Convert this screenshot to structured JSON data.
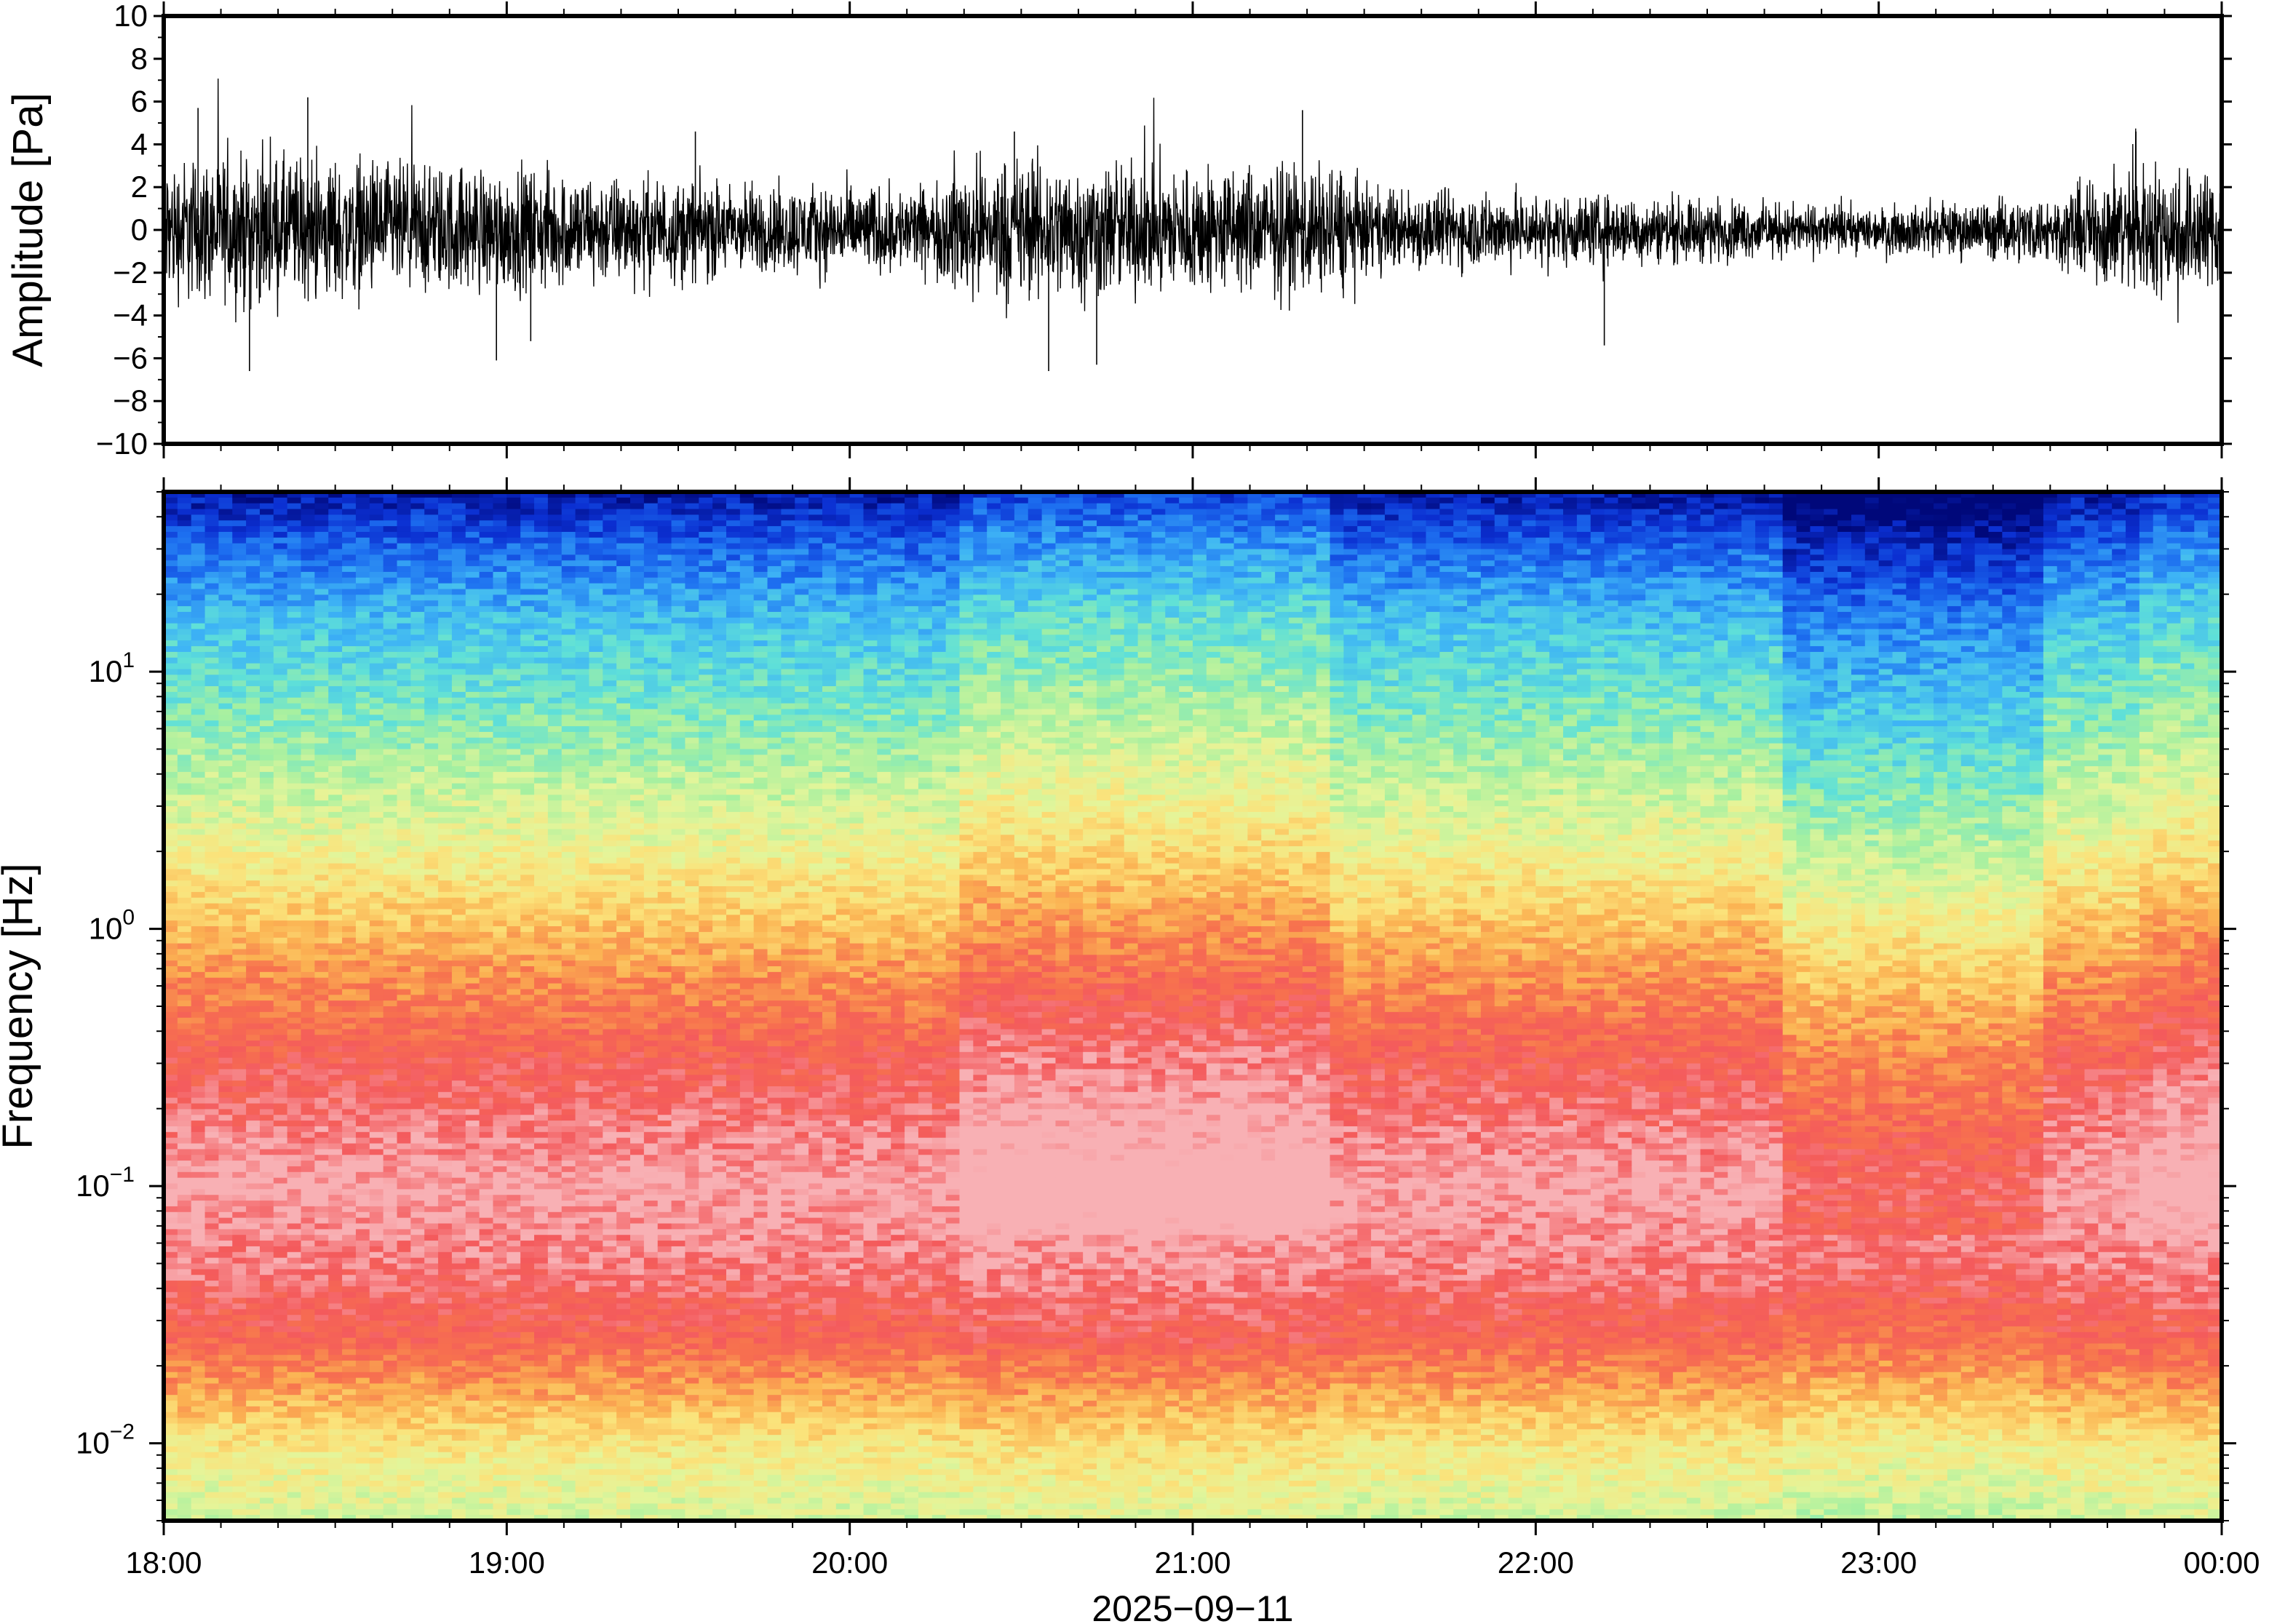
{
  "chart_data": [
    {
      "type": "line",
      "panel": "waveform",
      "ylabel": "Amplitude [Pa]",
      "xlabel": "",
      "ylim": [
        -10,
        10
      ],
      "yticks": [
        "10",
        "8",
        "6",
        "4",
        "2",
        "0",
        "−2",
        "−4",
        "−6",
        "−8",
        "−10"
      ],
      "ytick_values": [
        10,
        8,
        6,
        4,
        2,
        0,
        -2,
        -4,
        -6,
        -8,
        -10
      ],
      "xlim": [
        "18:00",
        "00:00"
      ],
      "grid": false,
      "envelope": {
        "description_hours": [
          18.0,
          18.25,
          18.5,
          18.75,
          19.0,
          19.25,
          19.5,
          19.75,
          20.0,
          20.25,
          20.3,
          20.5,
          20.75,
          21.0,
          21.25,
          21.45,
          21.5,
          21.75,
          22.0,
          22.25,
          22.5,
          22.75,
          23.0,
          23.25,
          23.5,
          23.75,
          24.0
        ],
        "values": [
          2.5,
          2.6,
          2.5,
          2.3,
          2.2,
          2.0,
          1.8,
          1.6,
          1.6,
          1.5,
          2.4,
          2.6,
          2.4,
          2.3,
          2.3,
          2.3,
          1.5,
          1.4,
          1.3,
          1.2,
          1.1,
          0.9,
          0.8,
          1.0,
          1.2,
          2.4,
          2.2
        ]
      },
      "spikes": [
        {
          "t": 18.42,
          "v": 6.2
        },
        {
          "t": 18.25,
          "v": -6.6
        },
        {
          "t": 18.97,
          "v": -6.1
        },
        {
          "t": 19.55,
          "v": 4.6
        },
        {
          "t": 20.48,
          "v": 4.6
        },
        {
          "t": 20.58,
          "v": -6.6
        },
        {
          "t": 20.72,
          "v": -6.3
        },
        {
          "t": 21.32,
          "v": 5.6
        },
        {
          "t": 22.2,
          "v": -5.4
        },
        {
          "t": 18.1,
          "v": 5.7
        },
        {
          "t": 19.07,
          "v": -5.2
        },
        {
          "t": 23.75,
          "v": 4.6
        }
      ]
    },
    {
      "type": "heatmap",
      "panel": "spectrogram",
      "ylabel": "Frequency [Hz]",
      "xlabel": "2025−09−11",
      "yscale": "log",
      "ylim": [
        0.005,
        50
      ],
      "yticks": [
        {
          "base": "10",
          "exp": "1",
          "value": 10
        },
        {
          "base": "10",
          "exp": "0",
          "value": 1
        },
        {
          "base": "10",
          "exp": "−1",
          "value": 0.1
        },
        {
          "base": "10",
          "exp": "−2",
          "value": 0.01
        }
      ],
      "xticks": [
        "18:00",
        "19:00",
        "20:00",
        "21:00",
        "22:00",
        "23:00",
        "00:00"
      ],
      "colormap": "spectral (blue = low power, red = high power)",
      "colors": [
        "#00087a",
        "#0b2fd1",
        "#1d6ff0",
        "#3eb4f5",
        "#5fe0d8",
        "#a6f0a0",
        "#e4f59a",
        "#fbe27a",
        "#fbb252",
        "#f7724e",
        "#f45a5c",
        "#f8b0b4"
      ],
      "grid": false
    }
  ]
}
